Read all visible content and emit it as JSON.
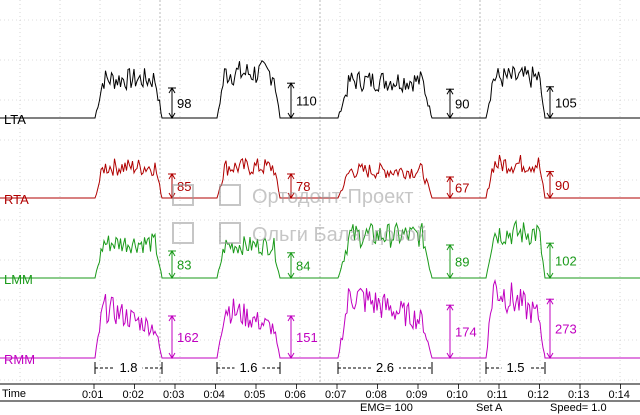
{
  "channels": [
    {
      "name": "LTA",
      "color": "#000000",
      "values": [
        "98",
        "110",
        "90",
        "105"
      ]
    },
    {
      "name": "RTA",
      "color": "#b00000",
      "values": [
        "85",
        "78",
        "67",
        "90"
      ]
    },
    {
      "name": "LMM",
      "color": "#1a9a1a",
      "values": [
        "83",
        "84",
        "89",
        "102"
      ]
    },
    {
      "name": "RMM",
      "color": "#c000c0",
      "values": [
        "162",
        "151",
        "174",
        "273"
      ]
    }
  ],
  "durations": [
    "1.8",
    "1.6",
    "2.6",
    "1.5"
  ],
  "time_label": "Time",
  "time_ticks": [
    "0:01",
    "0:02",
    "0:03",
    "0:04",
    "0:05",
    "0:06",
    "0:07",
    "0:08",
    "0:09",
    "0:10",
    "0:11",
    "0:12",
    "0:13",
    "0:14"
  ],
  "watermark": {
    "line1": "Ортодонт-Проект",
    "line2": "Ольги Баландовой"
  },
  "status": {
    "emg": "EMG= 100",
    "set": "Set A",
    "speed": "Speed= 1.0"
  }
}
